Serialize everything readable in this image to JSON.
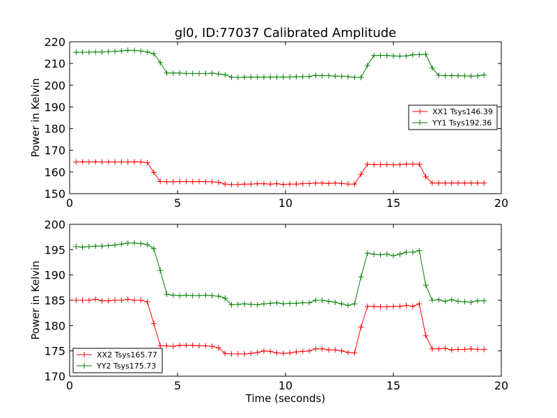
{
  "figure": {
    "title": "gl0, ID:77037 Calibrated Amplitude"
  },
  "chart_data": [
    {
      "type": "line",
      "title": "gl0, ID:77037 Calibrated Amplitude",
      "xlabel": "",
      "ylabel": "Power in Kelvin",
      "xlim": [
        0,
        20
      ],
      "ylim": [
        150,
        220
      ],
      "xticks": [
        0,
        5,
        10,
        15,
        20
      ],
      "yticks": [
        150,
        160,
        170,
        180,
        190,
        200,
        210,
        220
      ],
      "grid": false,
      "legend_position": "center-right",
      "x": [
        0.3,
        0.6,
        0.9,
        1.2,
        1.5,
        1.8,
        2.1,
        2.4,
        2.7,
        3.0,
        3.3,
        3.6,
        3.9,
        4.2,
        4.5,
        4.8,
        5.1,
        5.4,
        5.7,
        6.0,
        6.3,
        6.6,
        6.9,
        7.2,
        7.5,
        7.8,
        8.1,
        8.4,
        8.7,
        9.0,
        9.3,
        9.6,
        9.9,
        10.2,
        10.5,
        10.8,
        11.1,
        11.4,
        11.7,
        12.0,
        12.3,
        12.6,
        12.9,
        13.2,
        13.5,
        13.8,
        14.1,
        14.4,
        14.7,
        15.0,
        15.3,
        15.6,
        15.9,
        16.2,
        16.5,
        16.8,
        17.1,
        17.4,
        17.7,
        18.0,
        18.3,
        18.6,
        18.9,
        19.2
      ],
      "series": [
        {
          "name": "XX1 Tsys146.39",
          "color": "#ff0000",
          "values": [
            164.6,
            164.7,
            164.6,
            164.7,
            164.6,
            164.6,
            164.6,
            164.6,
            164.6,
            164.7,
            164.6,
            164.3,
            159.8,
            155.6,
            155.5,
            155.5,
            155.6,
            155.6,
            155.5,
            155.6,
            155.5,
            155.5,
            155.2,
            154.4,
            154.2,
            154.2,
            154.4,
            154.4,
            154.6,
            154.6,
            154.4,
            154.6,
            154.2,
            154.4,
            154.4,
            154.6,
            154.7,
            154.9,
            154.9,
            154.7,
            154.9,
            154.7,
            154.4,
            154.4,
            158.9,
            163.6,
            163.4,
            163.4,
            163.4,
            163.3,
            163.4,
            163.6,
            163.6,
            163.6,
            157.8,
            154.9,
            154.9,
            154.9,
            154.9,
            154.9,
            154.9,
            154.9,
            154.9,
            154.9
          ]
        },
        {
          "name": "YY1 Tsys192.36",
          "color": "#008000",
          "values": [
            215.1,
            215.2,
            215.2,
            215.3,
            215.3,
            215.5,
            215.6,
            215.8,
            216.1,
            216.0,
            215.8,
            215.3,
            214.5,
            210.4,
            205.6,
            205.6,
            205.6,
            205.4,
            205.4,
            205.4,
            205.4,
            205.5,
            205.2,
            204.8,
            203.7,
            203.6,
            203.7,
            203.7,
            203.7,
            203.7,
            203.7,
            203.8,
            203.7,
            203.8,
            203.9,
            203.9,
            204.0,
            204.5,
            204.4,
            204.4,
            204.2,
            204.1,
            203.9,
            203.6,
            203.6,
            209.1,
            213.7,
            213.7,
            213.7,
            213.5,
            213.4,
            213.5,
            214.0,
            214.1,
            214.3,
            207.9,
            204.6,
            204.4,
            204.4,
            204.4,
            204.3,
            204.2,
            204.3,
            204.7
          ]
        }
      ]
    },
    {
      "type": "line",
      "title": "",
      "xlabel": "Time (seconds)",
      "ylabel": "Power in Kelvin",
      "xlim": [
        0,
        20
      ],
      "ylim": [
        170,
        200
      ],
      "xticks": [
        0,
        5,
        10,
        15,
        20
      ],
      "yticks": [
        170,
        175,
        180,
        185,
        190,
        195,
        200
      ],
      "grid": false,
      "legend_position": "lower-left",
      "x": [
        0.3,
        0.6,
        0.9,
        1.2,
        1.5,
        1.8,
        2.1,
        2.4,
        2.7,
        3.0,
        3.3,
        3.6,
        3.9,
        4.2,
        4.5,
        4.8,
        5.1,
        5.4,
        5.7,
        6.0,
        6.3,
        6.6,
        6.9,
        7.2,
        7.5,
        7.8,
        8.1,
        8.4,
        8.7,
        9.0,
        9.3,
        9.6,
        9.9,
        10.2,
        10.5,
        10.8,
        11.1,
        11.4,
        11.7,
        12.0,
        12.3,
        12.6,
        12.9,
        13.2,
        13.5,
        13.8,
        14.1,
        14.4,
        14.7,
        15.0,
        15.3,
        15.6,
        15.9,
        16.2,
        16.5,
        16.8,
        17.1,
        17.4,
        17.7,
        18.0,
        18.3,
        18.6,
        18.9,
        19.2
      ],
      "series": [
        {
          "name": "XX2 Tsys165.77",
          "color": "#ff0000",
          "values": [
            185.0,
            185.0,
            185.0,
            185.2,
            184.9,
            184.9,
            185.0,
            185.0,
            185.2,
            185.0,
            185.0,
            184.7,
            180.4,
            176.0,
            176.0,
            175.9,
            176.1,
            176.1,
            176.1,
            176.0,
            176.0,
            175.9,
            175.6,
            174.5,
            174.4,
            174.4,
            174.4,
            174.5,
            174.7,
            175.0,
            174.9,
            174.6,
            174.5,
            174.6,
            174.8,
            174.9,
            175.0,
            175.4,
            175.4,
            175.2,
            175.2,
            175.0,
            174.7,
            174.6,
            179.7,
            183.8,
            183.8,
            183.7,
            183.7,
            183.8,
            183.8,
            184.0,
            183.8,
            184.3,
            178.0,
            175.4,
            175.4,
            175.5,
            175.2,
            175.3,
            175.3,
            175.4,
            175.3,
            175.3
          ]
        },
        {
          "name": "YY2 Tsys175.73",
          "color": "#008000",
          "values": [
            195.6,
            195.5,
            195.6,
            195.7,
            195.7,
            195.8,
            195.9,
            196.1,
            196.3,
            196.3,
            196.2,
            196.0,
            195.2,
            190.9,
            186.2,
            186.0,
            185.9,
            186.0,
            185.9,
            185.9,
            186.0,
            185.9,
            185.8,
            185.4,
            184.1,
            184.2,
            184.3,
            184.2,
            184.1,
            184.3,
            184.4,
            184.5,
            184.3,
            184.4,
            184.4,
            184.5,
            184.5,
            185.0,
            185.0,
            184.8,
            184.6,
            184.3,
            184.0,
            184.3,
            189.6,
            194.3,
            194.1,
            194.0,
            194.1,
            193.8,
            194.1,
            194.5,
            194.5,
            194.8,
            188.0,
            185.0,
            185.1,
            184.8,
            185.1,
            184.8,
            184.7,
            184.6,
            184.9,
            184.9
          ]
        }
      ]
    }
  ]
}
